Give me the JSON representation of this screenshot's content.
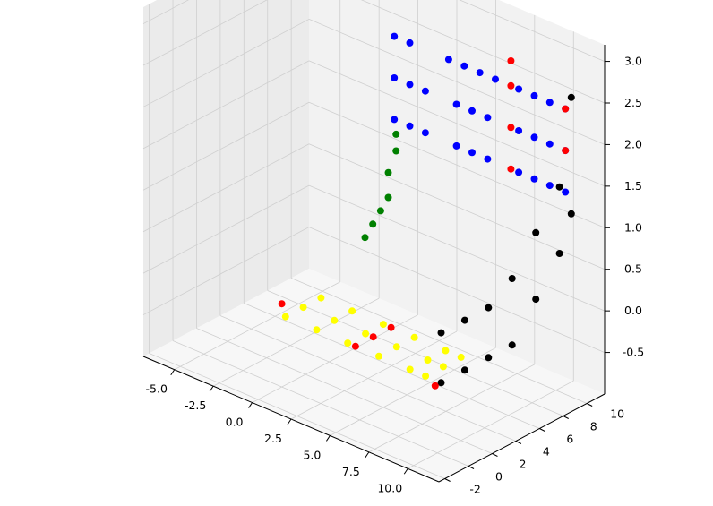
{
  "chart_data": {
    "type": "scatter",
    "projection": "3d",
    "title": "",
    "xlabel": "",
    "ylabel": "",
    "zlabel": "",
    "xlim": [
      -7,
      12
    ],
    "ylim": [
      -2.5,
      11.5
    ],
    "zlim": [
      -1,
      3.2
    ],
    "grid": true,
    "legend": "none",
    "colors": {
      "pane_side": "#ebebeb",
      "pane_back": "#f2f2f2",
      "pane_floor": "#f7f7f7",
      "grid": "#cfcfcf"
    },
    "axes": {
      "x_ticks": [
        "-5.0",
        "-2.5",
        "0.0",
        "2.5",
        "5.0",
        "7.5",
        "10.0"
      ],
      "x_tick_values": [
        -5,
        -2.5,
        0,
        2.5,
        5,
        7.5,
        10
      ],
      "y_ticks": [
        "-2",
        "0",
        "2",
        "4",
        "6",
        "8",
        "10"
      ],
      "y_tick_values": [
        -2,
        0,
        2,
        4,
        6,
        8,
        10
      ],
      "z_ticks": [
        "-0.5",
        "0.0",
        "0.5",
        "1.0",
        "1.5",
        "2.0",
        "2.5",
        "3.0"
      ],
      "z_tick_values": [
        -0.5,
        0,
        0.5,
        1,
        1.5,
        2,
        2.5,
        3
      ]
    },
    "series": [
      {
        "color": "#0000ff",
        "points": [
          [
            0.0,
            9.5,
            1.5
          ],
          [
            1.0,
            9.5,
            1.5
          ],
          [
            2.0,
            9.5,
            1.5
          ],
          [
            4.0,
            9.5,
            1.5
          ],
          [
            5.0,
            9.5,
            1.5
          ],
          [
            6.0,
            9.5,
            1.5
          ],
          [
            0.0,
            9.5,
            2.0
          ],
          [
            1.0,
            9.5,
            2.0
          ],
          [
            2.0,
            9.5,
            2.0
          ],
          [
            4.0,
            9.5,
            2.0
          ],
          [
            5.0,
            9.5,
            2.0
          ],
          [
            6.0,
            9.5,
            2.0
          ],
          [
            0.0,
            9.5,
            2.5
          ],
          [
            1.0,
            9.5,
            2.5
          ],
          [
            3.5,
            9.5,
            2.5
          ],
          [
            4.5,
            9.5,
            2.5
          ],
          [
            5.5,
            9.5,
            2.5
          ],
          [
            6.5,
            9.5,
            2.5
          ],
          [
            8.0,
            9.5,
            1.5
          ],
          [
            9.0,
            9.5,
            1.5
          ],
          [
            10.0,
            9.5,
            1.5
          ],
          [
            11.0,
            9.5,
            1.5
          ],
          [
            8.0,
            9.5,
            2.0
          ],
          [
            9.0,
            9.5,
            2.0
          ],
          [
            10.0,
            9.5,
            2.0
          ],
          [
            11.0,
            9.5,
            2.0
          ],
          [
            8.0,
            9.5,
            2.5
          ],
          [
            9.0,
            9.5,
            2.5
          ],
          [
            10.0,
            9.5,
            2.5
          ],
          [
            11.0,
            9.5,
            2.5
          ]
        ]
      },
      {
        "color": "#000000",
        "points": [
          [
            11.0,
            -1.0,
            0.0
          ],
          [
            11.0,
            1.0,
            0.0
          ],
          [
            11.0,
            3.0,
            0.0
          ],
          [
            11.0,
            5.0,
            0.0
          ],
          [
            11.0,
            7.0,
            0.4
          ],
          [
            11.0,
            9.0,
            0.8
          ],
          [
            11.0,
            10.0,
            1.2
          ],
          [
            11.0,
            -1.0,
            0.6
          ],
          [
            11.0,
            1.0,
            0.6
          ],
          [
            11.0,
            3.0,
            0.6
          ],
          [
            11.0,
            5.0,
            0.8
          ],
          [
            11.0,
            7.0,
            1.2
          ],
          [
            11.0,
            9.0,
            1.6
          ],
          [
            11.0,
            10.0,
            2.6
          ]
        ]
      },
      {
        "color": "#ffff00",
        "points": [
          [
            1.0,
            -1.0,
            0.0
          ],
          [
            3.0,
            -1.0,
            0.0
          ],
          [
            5.0,
            -1.0,
            0.0
          ],
          [
            7.0,
            -1.0,
            0.0
          ],
          [
            9.0,
            -1.0,
            0.0
          ],
          [
            10.0,
            -1.0,
            0.0
          ],
          [
            1.0,
            0.5,
            0.0
          ],
          [
            3.0,
            0.5,
            0.0
          ],
          [
            5.0,
            0.5,
            0.0
          ],
          [
            7.0,
            0.5,
            0.0
          ],
          [
            9.0,
            0.5,
            0.0
          ],
          [
            10.0,
            0.5,
            0.0
          ],
          [
            1.0,
            2.0,
            0.0
          ],
          [
            3.0,
            2.0,
            0.0
          ],
          [
            5.0,
            2.0,
            0.0
          ],
          [
            7.0,
            2.0,
            0.0
          ],
          [
            9.0,
            2.0,
            0.0
          ],
          [
            10.0,
            2.0,
            0.0
          ]
        ]
      },
      {
        "color": "#008000",
        "points": [
          [
            -1.5,
            9.0,
            0.0
          ],
          [
            -1.0,
            9.0,
            0.2
          ],
          [
            -0.5,
            9.0,
            0.4
          ],
          [
            0.0,
            9.0,
            0.6
          ],
          [
            0.0,
            9.0,
            0.9
          ],
          [
            0.5,
            9.0,
            1.2
          ],
          [
            0.5,
            9.0,
            1.4
          ]
        ]
      },
      {
        "color": "#ff0000",
        "points": [
          [
            0.0,
            0.0,
            0.0
          ],
          [
            5.5,
            -1.0,
            0.0
          ],
          [
            5.5,
            0.5,
            0.0
          ],
          [
            5.5,
            2.0,
            0.0
          ],
          [
            11.0,
            -1.5,
            0.0
          ],
          [
            7.5,
            9.5,
            1.5
          ],
          [
            7.5,
            9.5,
            2.0
          ],
          [
            7.5,
            9.5,
            2.5
          ],
          [
            7.5,
            9.5,
            2.8
          ],
          [
            11.0,
            9.5,
            2.5
          ],
          [
            11.0,
            9.5,
            2.0
          ]
        ]
      }
    ]
  }
}
